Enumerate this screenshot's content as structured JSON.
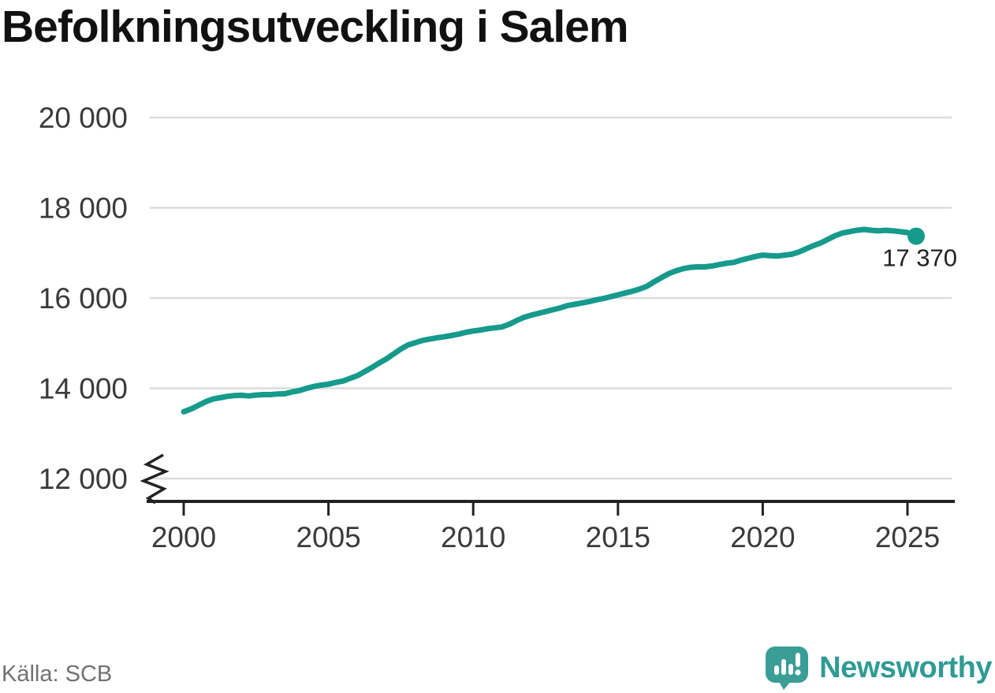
{
  "title": "Befolkningsutveckling i Salem",
  "source": {
    "label": "Källa: SCB"
  },
  "branding": {
    "name": "Newsworthy"
  },
  "colors": {
    "line": "#169a8b",
    "logo": "#3a9e96",
    "wordmark": "#2f9b94",
    "grid": "#dcdcdc",
    "axis": "#222222",
    "axis_text": "#3a3a3a",
    "title_text": "#111111",
    "source_text": "#717171",
    "annotation_text": "#222222"
  },
  "chart_data": {
    "type": "line",
    "title": "Befolkningsutveckling i Salem",
    "xlabel": "",
    "ylabel": "",
    "grid": "horizontal",
    "legend": "none",
    "y_axis_break": true,
    "xlim": [
      1998.8,
      2026.6
    ],
    "ylim_display": [
      11500,
      20300
    ],
    "x_ticks": [
      {
        "value": 2000,
        "label": "2000"
      },
      {
        "value": 2005,
        "label": "2005"
      },
      {
        "value": 2010,
        "label": "2010"
      },
      {
        "value": 2015,
        "label": "2015"
      },
      {
        "value": 2020,
        "label": "2020"
      },
      {
        "value": 2025,
        "label": "2025"
      }
    ],
    "y_ticks": [
      {
        "value": 12000,
        "label": "12 000"
      },
      {
        "value": 14000,
        "label": "14 000"
      },
      {
        "value": 16000,
        "label": "16 000"
      },
      {
        "value": 18000,
        "label": "18 000"
      },
      {
        "value": 20000,
        "label": "20 000"
      }
    ],
    "annotation": {
      "text": "17 370",
      "year": 2025.3,
      "value": 17370
    },
    "series": [
      {
        "points": [
          [
            2000.0,
            13480
          ],
          [
            2000.25,
            13540
          ],
          [
            2000.5,
            13620
          ],
          [
            2000.75,
            13700
          ],
          [
            2001.0,
            13760
          ],
          [
            2001.25,
            13790
          ],
          [
            2001.5,
            13820
          ],
          [
            2001.75,
            13840
          ],
          [
            2002.0,
            13845
          ],
          [
            2002.25,
            13830
          ],
          [
            2002.5,
            13850
          ],
          [
            2002.75,
            13860
          ],
          [
            2003.0,
            13860
          ],
          [
            2003.25,
            13875
          ],
          [
            2003.5,
            13880
          ],
          [
            2003.75,
            13920
          ],
          [
            2004.0,
            13950
          ],
          [
            2004.25,
            14000
          ],
          [
            2004.5,
            14040
          ],
          [
            2004.75,
            14070
          ],
          [
            2005.0,
            14090
          ],
          [
            2005.25,
            14130
          ],
          [
            2005.5,
            14160
          ],
          [
            2005.75,
            14220
          ],
          [
            2006.0,
            14280
          ],
          [
            2006.25,
            14370
          ],
          [
            2006.5,
            14460
          ],
          [
            2006.75,
            14560
          ],
          [
            2007.0,
            14650
          ],
          [
            2007.25,
            14760
          ],
          [
            2007.5,
            14870
          ],
          [
            2007.75,
            14960
          ],
          [
            2008.0,
            15010
          ],
          [
            2008.25,
            15060
          ],
          [
            2008.5,
            15090
          ],
          [
            2008.75,
            15120
          ],
          [
            2009.0,
            15140
          ],
          [
            2009.25,
            15170
          ],
          [
            2009.5,
            15200
          ],
          [
            2009.75,
            15240
          ],
          [
            2010.0,
            15270
          ],
          [
            2010.25,
            15290
          ],
          [
            2010.5,
            15320
          ],
          [
            2010.75,
            15340
          ],
          [
            2011.0,
            15360
          ],
          [
            2011.25,
            15420
          ],
          [
            2011.5,
            15500
          ],
          [
            2011.75,
            15570
          ],
          [
            2012.0,
            15620
          ],
          [
            2012.25,
            15660
          ],
          [
            2012.5,
            15700
          ],
          [
            2012.75,
            15740
          ],
          [
            2013.0,
            15780
          ],
          [
            2013.25,
            15830
          ],
          [
            2013.5,
            15860
          ],
          [
            2013.75,
            15890
          ],
          [
            2014.0,
            15920
          ],
          [
            2014.25,
            15960
          ],
          [
            2014.5,
            15990
          ],
          [
            2014.75,
            16030
          ],
          [
            2015.0,
            16070
          ],
          [
            2015.25,
            16110
          ],
          [
            2015.5,
            16150
          ],
          [
            2015.75,
            16200
          ],
          [
            2016.0,
            16260
          ],
          [
            2016.25,
            16360
          ],
          [
            2016.5,
            16450
          ],
          [
            2016.75,
            16540
          ],
          [
            2017.0,
            16600
          ],
          [
            2017.25,
            16650
          ],
          [
            2017.5,
            16680
          ],
          [
            2017.75,
            16690
          ],
          [
            2018.0,
            16690
          ],
          [
            2018.25,
            16710
          ],
          [
            2018.5,
            16740
          ],
          [
            2018.75,
            16770
          ],
          [
            2019.0,
            16790
          ],
          [
            2019.25,
            16840
          ],
          [
            2019.5,
            16880
          ],
          [
            2019.75,
            16920
          ],
          [
            2020.0,
            16950
          ],
          [
            2020.25,
            16940
          ],
          [
            2020.5,
            16930
          ],
          [
            2020.75,
            16950
          ],
          [
            2021.0,
            16970
          ],
          [
            2021.25,
            17020
          ],
          [
            2021.5,
            17090
          ],
          [
            2021.75,
            17160
          ],
          [
            2022.0,
            17220
          ],
          [
            2022.25,
            17300
          ],
          [
            2022.5,
            17380
          ],
          [
            2022.75,
            17440
          ],
          [
            2023.0,
            17470
          ],
          [
            2023.25,
            17500
          ],
          [
            2023.5,
            17520
          ],
          [
            2023.75,
            17500
          ],
          [
            2024.0,
            17490
          ],
          [
            2024.25,
            17500
          ],
          [
            2024.5,
            17490
          ],
          [
            2024.75,
            17470
          ],
          [
            2025.0,
            17450
          ],
          [
            2025.15,
            17400
          ],
          [
            2025.3,
            17370
          ]
        ]
      }
    ]
  }
}
